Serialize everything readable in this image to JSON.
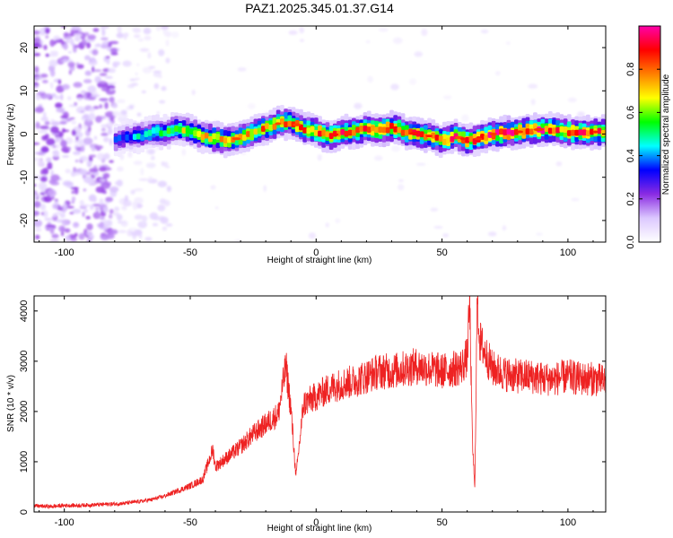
{
  "title": "PAZ1.2025.345.01.37.G14",
  "chart_data": [
    {
      "type": "heatmap",
      "title": "PAZ1.2025.345.01.37.G14",
      "xlabel": "Height of straight line (km)",
      "ylabel": "Frequency (Hz)",
      "xlim": [
        -112,
        115
      ],
      "ylim": [
        -25,
        25
      ],
      "xticks": [
        -100,
        -50,
        0,
        50,
        100
      ],
      "yticks": [
        -20,
        -10,
        0,
        10,
        20
      ],
      "colorbar": {
        "label": "Normalized spectral amplitude",
        "range": [
          0,
          1
        ],
        "ticks": [
          0.0,
          0.2,
          0.4,
          0.6,
          0.8
        ],
        "tick_labels": [
          "0.0",
          "0.2",
          "0.4",
          "0.6",
          "0.8"
        ],
        "colors": [
          "#ffffff",
          "#dcc8ff",
          "#8a2be2",
          "#0000ff",
          "#00ffff",
          "#00ff00",
          "#ffff00",
          "#ff7f00",
          "#ff0000",
          "#ff00aa"
        ]
      },
      "ridge_x": [
        -80,
        -75,
        -70,
        -65,
        -60,
        -55,
        -50,
        -45,
        -40,
        -35,
        -30,
        -25,
        -20,
        -15,
        -10,
        -5,
        0,
        5,
        10,
        15,
        20,
        25,
        30,
        35,
        40,
        45,
        50,
        55,
        60,
        65,
        70,
        75,
        80,
        85,
        90,
        95,
        100,
        105,
        110,
        115
      ],
      "ridge_frequency": [
        -1.5,
        -0.5,
        -0.5,
        0.5,
        0.5,
        1.2,
        0.5,
        -0.5,
        -1,
        -1.5,
        -0.8,
        0.5,
        1.5,
        2.5,
        2.8,
        1.2,
        0.5,
        -0.5,
        0.5,
        0.5,
        1.2,
        1,
        1.5,
        0.5,
        0,
        -0.5,
        -1.5,
        -0.5,
        -1.5,
        -1,
        0,
        0.3,
        0.5,
        0.8,
        1.2,
        1,
        0.5,
        0.2,
        0.5,
        0.5
      ],
      "ridge_amplitude": [
        0.35,
        0.4,
        0.45,
        0.5,
        0.55,
        0.6,
        0.65,
        0.7,
        0.75,
        0.75,
        0.75,
        0.75,
        0.75,
        0.75,
        0.75,
        0.8,
        0.85,
        0.85,
        0.85,
        0.85,
        0.9,
        0.9,
        0.85,
        0.85,
        0.85,
        0.8,
        0.8,
        0.85,
        0.85,
        0.85,
        0.9,
        0.9,
        0.9,
        0.9,
        0.9,
        0.85,
        0.85,
        0.85,
        0.85,
        0.85
      ]
    },
    {
      "type": "line",
      "xlabel": "Height of straight line (km)",
      "ylabel": "SNR (10 * v/v)",
      "xlim": [
        -112,
        115
      ],
      "ylim": [
        0,
        4300
      ],
      "xticks": [
        -100,
        -50,
        0,
        50,
        100
      ],
      "yticks": [
        0,
        1000,
        2000,
        3000,
        4000
      ],
      "series": [
        {
          "name": "SNR",
          "color": "#ee2222",
          "x": [
            -112,
            -105,
            -100,
            -95,
            -90,
            -85,
            -80,
            -75,
            -70,
            -65,
            -60,
            -55,
            -50,
            -45,
            -41,
            -40,
            -35,
            -30,
            -25,
            -20,
            -15,
            -12,
            -10,
            -8,
            -5,
            0,
            5,
            10,
            15,
            20,
            25,
            30,
            35,
            40,
            45,
            50,
            55,
            58,
            60,
            61,
            62,
            63,
            64,
            65,
            70,
            75,
            80,
            85,
            90,
            95,
            100,
            105,
            110,
            115
          ],
          "y": [
            120,
            110,
            130,
            130,
            140,
            150,
            160,
            180,
            210,
            250,
            320,
            420,
            520,
            650,
            1250,
            900,
            1100,
            1300,
            1550,
            1750,
            1950,
            2900,
            2050,
            700,
            2150,
            2300,
            2450,
            2550,
            2600,
            2700,
            2800,
            2800,
            2850,
            2900,
            2850,
            2800,
            2850,
            2900,
            3100,
            4200,
            1500,
            450,
            4300,
            3400,
            2850,
            2750,
            2700,
            2700,
            2650,
            2650,
            2700,
            2650,
            2650,
            2600
          ]
        }
      ]
    }
  ]
}
